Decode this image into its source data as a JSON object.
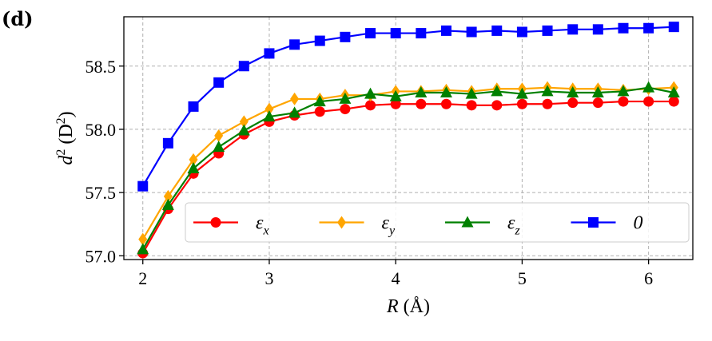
{
  "panel_label": "(d)",
  "chart_data": {
    "type": "line",
    "title": "",
    "xlabel_main": "R",
    "xlabel_unit": " (Å)",
    "ylabel_main": "d",
    "ylabel_sup": "2",
    "ylabel_unit_pre": " (D",
    "ylabel_unit_sup": "2",
    "ylabel_unit_post": ")",
    "xlim": [
      1.85,
      6.35
    ],
    "ylim": [
      56.97,
      58.89
    ],
    "xticks": [
      2,
      3,
      4,
      5,
      6
    ],
    "xtick_labels": [
      "2",
      "3",
      "4",
      "5",
      "6"
    ],
    "yticks": [
      57.0,
      57.5,
      58.0,
      58.5
    ],
    "ytick_labels": [
      "57.0",
      "57.5",
      "58.0",
      "58.5"
    ],
    "grid": true,
    "legend_position": "lower-right",
    "x": [
      2.0,
      2.2,
      2.4,
      2.6,
      2.8,
      3.0,
      3.2,
      3.4,
      3.6,
      3.8,
      4.0,
      4.2,
      4.4,
      4.6,
      4.8,
      5.0,
      5.2,
      5.4,
      5.6,
      5.8,
      6.0,
      6.2
    ],
    "series": [
      {
        "name": "ε",
        "name_sub": "x",
        "color": "#ff0000",
        "marker": "circle",
        "values": [
          57.02,
          57.37,
          57.65,
          57.81,
          57.96,
          58.06,
          58.11,
          58.14,
          58.16,
          58.19,
          58.2,
          58.2,
          58.2,
          58.19,
          58.19,
          58.2,
          58.2,
          58.21,
          58.21,
          58.22,
          58.22,
          58.22
        ]
      },
      {
        "name": "ε",
        "name_sub": "y",
        "color": "#ffa500",
        "marker": "diamond",
        "values": [
          57.13,
          57.47,
          57.76,
          57.95,
          58.06,
          58.16,
          58.24,
          58.24,
          58.27,
          58.27,
          58.3,
          58.3,
          58.31,
          58.3,
          58.32,
          58.32,
          58.33,
          58.32,
          58.32,
          58.31,
          58.32,
          58.33
        ]
      },
      {
        "name": "ε",
        "name_sub": "z",
        "color": "#008000",
        "marker": "triangle",
        "values": [
          57.05,
          57.4,
          57.69,
          57.86,
          57.99,
          58.1,
          58.13,
          58.22,
          58.24,
          58.28,
          58.26,
          58.29,
          58.29,
          58.28,
          58.3,
          58.28,
          58.3,
          58.29,
          58.29,
          58.3,
          58.33,
          58.29
        ]
      },
      {
        "name": "0",
        "name_sub": "",
        "color": "#0000ff",
        "marker": "square",
        "values": [
          57.55,
          57.89,
          58.18,
          58.37,
          58.5,
          58.6,
          58.67,
          58.7,
          58.73,
          58.76,
          58.76,
          58.76,
          58.78,
          58.77,
          58.78,
          58.77,
          58.78,
          58.79,
          58.79,
          58.8,
          58.8,
          58.81
        ]
      }
    ]
  }
}
